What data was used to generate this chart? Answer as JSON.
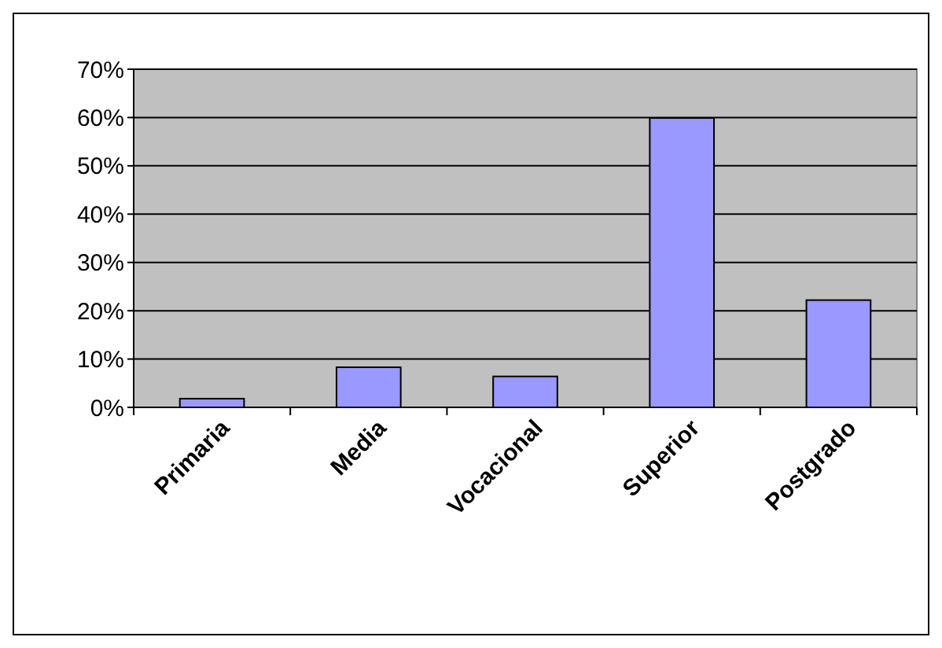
{
  "chart_data": {
    "type": "bar",
    "categories": [
      "Primaria",
      "Media",
      "Vocacional",
      "Superior",
      "Postgrado"
    ],
    "values": [
      1.8,
      8.3,
      6.4,
      59.9,
      22.2
    ],
    "color": "#9999ff",
    "ylim": [
      0,
      70
    ],
    "yticks": [
      {
        "value": 0,
        "label": "0%"
      },
      {
        "value": 10,
        "label": "10%"
      },
      {
        "value": 20,
        "label": "20%"
      },
      {
        "value": 30,
        "label": "30%"
      },
      {
        "value": 40,
        "label": "40%"
      },
      {
        "value": 50,
        "label": "50%"
      },
      {
        "value": 60,
        "label": "60%"
      },
      {
        "value": 70,
        "label": "70%"
      }
    ],
    "grid": "y"
  }
}
